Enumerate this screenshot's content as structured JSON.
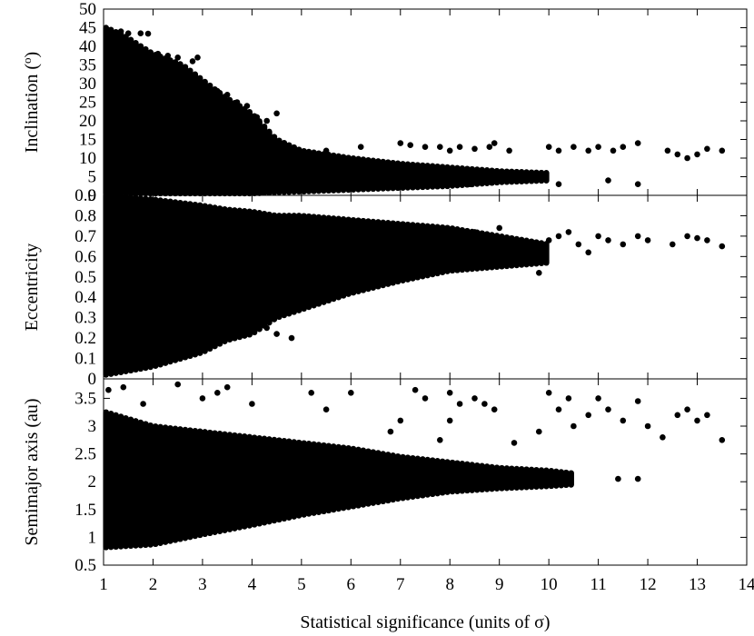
{
  "chart_data": {
    "type": "scatter",
    "marker_color": "#000000",
    "background_color": "#ffffff",
    "grid": false,
    "legend": "none",
    "x_shared": {
      "label": "Statistical significance (units of σ)",
      "range": [
        1,
        14
      ],
      "ticks": [
        1,
        2,
        3,
        4,
        5,
        6,
        7,
        8,
        9,
        10,
        11,
        12,
        13,
        14
      ],
      "tick_labels": [
        "1",
        "2",
        "3",
        "4",
        "5",
        "6",
        "7",
        "8",
        "9",
        "10",
        "11",
        "12",
        "13",
        "14"
      ]
    },
    "panels": [
      {
        "name": "inclination",
        "ylabel_main": "Inclination (",
        "ylabel_sup": "o",
        "ylabel_end": ")",
        "ylim": [
          0,
          50
        ],
        "yticks": [
          0,
          5,
          10,
          15,
          20,
          25,
          30,
          35,
          40,
          45,
          50
        ],
        "ytick_labels": [
          "0",
          "5",
          "10",
          "15",
          "20",
          "25",
          "30",
          "35",
          "40",
          "45",
          "50"
        ],
        "envelope": [
          {
            "x": 1.05,
            "lo": 0.5,
            "hi": 45
          },
          {
            "x": 1.4,
            "lo": 0.5,
            "hi": 43
          },
          {
            "x": 2.0,
            "lo": 0.5,
            "hi": 38
          },
          {
            "x": 2.6,
            "lo": 0.5,
            "hi": 35
          },
          {
            "x": 3.0,
            "lo": 0.5,
            "hi": 31
          },
          {
            "x": 3.5,
            "lo": 0.5,
            "hi": 26
          },
          {
            "x": 4.0,
            "lo": 0.5,
            "hi": 22
          },
          {
            "x": 4.5,
            "lo": 0.8,
            "hi": 15
          },
          {
            "x": 5.0,
            "lo": 1.0,
            "hi": 12
          },
          {
            "x": 6.0,
            "lo": 1.5,
            "hi": 10
          },
          {
            "x": 7.0,
            "lo": 2.0,
            "hi": 8.5
          },
          {
            "x": 8.0,
            "lo": 2.5,
            "hi": 7.5
          },
          {
            "x": 9.0,
            "lo": 3.5,
            "hi": 6.5
          },
          {
            "x": 10.0,
            "lo": 4.0,
            "hi": 6.0
          }
        ],
        "outliers": [
          [
            1.35,
            44
          ],
          [
            1.5,
            43.5
          ],
          [
            1.75,
            43.5
          ],
          [
            1.9,
            43.4
          ],
          [
            2.1,
            38
          ],
          [
            2.3,
            37.5
          ],
          [
            2.5,
            37
          ],
          [
            2.8,
            36
          ],
          [
            2.9,
            37
          ],
          [
            3.3,
            28
          ],
          [
            3.5,
            27
          ],
          [
            3.7,
            25
          ],
          [
            3.9,
            24
          ],
          [
            4.1,
            21
          ],
          [
            4.3,
            20
          ],
          [
            4.5,
            22
          ],
          [
            5.5,
            12
          ],
          [
            6.2,
            13
          ],
          [
            7.0,
            14
          ],
          [
            7.2,
            13.5
          ],
          [
            7.5,
            13
          ],
          [
            7.8,
            13
          ],
          [
            8.0,
            12
          ],
          [
            8.2,
            13
          ],
          [
            8.5,
            12.5
          ],
          [
            8.8,
            13
          ],
          [
            8.9,
            14
          ],
          [
            9.2,
            12
          ],
          [
            10.0,
            13
          ],
          [
            10.2,
            12
          ],
          [
            10.5,
            13
          ],
          [
            10.8,
            12
          ],
          [
            11.0,
            13
          ],
          [
            11.3,
            12
          ],
          [
            11.5,
            13
          ],
          [
            11.8,
            14
          ],
          [
            12.4,
            12
          ],
          [
            12.6,
            11
          ],
          [
            12.8,
            10
          ],
          [
            13.0,
            11
          ],
          [
            13.2,
            12.5
          ],
          [
            13.5,
            12
          ],
          [
            8.4,
            3
          ],
          [
            9.5,
            4
          ],
          [
            10.2,
            3
          ],
          [
            11.2,
            4
          ],
          [
            11.8,
            3
          ]
        ]
      },
      {
        "name": "eccentricity",
        "ylabel_main": "Eccentricity",
        "ylim": [
          0,
          0.9
        ],
        "yticks": [
          0,
          0.1,
          0.2,
          0.3,
          0.4,
          0.5,
          0.6,
          0.7,
          0.8,
          0.9
        ],
        "ytick_labels": [
          "0",
          "0.1",
          "0.2",
          "0.3",
          "0.4",
          "0.5",
          "0.6",
          "0.7",
          "0.8",
          "0.9"
        ],
        "envelope": [
          {
            "x": 1.05,
            "lo": 0.02,
            "hi": 0.9
          },
          {
            "x": 2.0,
            "lo": 0.06,
            "hi": 0.88
          },
          {
            "x": 3.0,
            "lo": 0.13,
            "hi": 0.85
          },
          {
            "x": 3.5,
            "lo": 0.19,
            "hi": 0.83
          },
          {
            "x": 4.0,
            "lo": 0.22,
            "hi": 0.82
          },
          {
            "x": 4.5,
            "lo": 0.3,
            "hi": 0.8
          },
          {
            "x": 5.0,
            "lo": 0.34,
            "hi": 0.8
          },
          {
            "x": 6.0,
            "lo": 0.42,
            "hi": 0.78
          },
          {
            "x": 7.0,
            "lo": 0.48,
            "hi": 0.76
          },
          {
            "x": 8.0,
            "lo": 0.53,
            "hi": 0.74
          },
          {
            "x": 9.0,
            "lo": 0.55,
            "hi": 0.7
          },
          {
            "x": 10.0,
            "lo": 0.57,
            "hi": 0.66
          }
        ],
        "outliers": [
          [
            4.5,
            0.22
          ],
          [
            4.3,
            0.25
          ],
          [
            4.8,
            0.2
          ],
          [
            8.5,
            0.72
          ],
          [
            9.0,
            0.74
          ],
          [
            9.5,
            0.65
          ],
          [
            9.8,
            0.52
          ],
          [
            10.0,
            0.68
          ],
          [
            10.2,
            0.7
          ],
          [
            10.4,
            0.72
          ],
          [
            10.6,
            0.66
          ],
          [
            10.8,
            0.62
          ],
          [
            11.0,
            0.7
          ],
          [
            11.2,
            0.68
          ],
          [
            11.5,
            0.66
          ],
          [
            11.8,
            0.7
          ],
          [
            12.0,
            0.68
          ],
          [
            12.5,
            0.66
          ],
          [
            12.8,
            0.7
          ],
          [
            13.0,
            0.69
          ],
          [
            13.2,
            0.68
          ],
          [
            13.5,
            0.65
          ]
        ]
      },
      {
        "name": "semimajor_axis",
        "ylabel_main": "Semimajor axis (au)",
        "ylim": [
          0.5,
          3.85
        ],
        "yticks": [
          0.5,
          1,
          1.5,
          2,
          2.5,
          3,
          3.5
        ],
        "ytick_labels": [
          "0.5",
          "1",
          "1.5",
          "2",
          "2.5",
          "3",
          "3.5"
        ],
        "envelope": [
          {
            "x": 1.05,
            "lo": 0.82,
            "hi": 3.25
          },
          {
            "x": 2.0,
            "lo": 0.87,
            "hi": 3.0
          },
          {
            "x": 3.0,
            "lo": 1.05,
            "hi": 2.9
          },
          {
            "x": 4.0,
            "lo": 1.22,
            "hi": 2.8
          },
          {
            "x": 5.0,
            "lo": 1.4,
            "hi": 2.7
          },
          {
            "x": 6.0,
            "lo": 1.55,
            "hi": 2.6
          },
          {
            "x": 7.0,
            "lo": 1.7,
            "hi": 2.45
          },
          {
            "x": 8.0,
            "lo": 1.82,
            "hi": 2.35
          },
          {
            "x": 9.0,
            "lo": 1.88,
            "hi": 2.25
          },
          {
            "x": 10.0,
            "lo": 1.92,
            "hi": 2.2
          },
          {
            "x": 10.5,
            "lo": 1.95,
            "hi": 2.15
          }
        ],
        "outliers": [
          [
            1.1,
            3.65
          ],
          [
            1.4,
            3.7
          ],
          [
            1.8,
            3.4
          ],
          [
            2.5,
            3.75
          ],
          [
            3.0,
            3.5
          ],
          [
            3.3,
            3.6
          ],
          [
            3.5,
            3.7
          ],
          [
            4.0,
            3.4
          ],
          [
            5.2,
            3.6
          ],
          [
            5.5,
            3.3
          ],
          [
            6.0,
            3.6
          ],
          [
            7.3,
            3.65
          ],
          [
            7.5,
            3.5
          ],
          [
            8.0,
            3.6
          ],
          [
            8.2,
            3.4
          ],
          [
            8.5,
            3.5
          ],
          [
            8.7,
            3.4
          ],
          [
            8.9,
            3.3
          ],
          [
            7.0,
            3.1
          ],
          [
            6.8,
            2.9
          ],
          [
            7.8,
            2.75
          ],
          [
            8.0,
            3.1
          ],
          [
            9.3,
            2.7
          ],
          [
            10.0,
            3.6
          ],
          [
            10.2,
            3.3
          ],
          [
            10.4,
            3.5
          ],
          [
            10.5,
            3.0
          ],
          [
            10.8,
            3.2
          ],
          [
            11.0,
            3.5
          ],
          [
            11.2,
            3.3
          ],
          [
            11.5,
            3.1
          ],
          [
            11.8,
            3.45
          ],
          [
            12.0,
            3.0
          ],
          [
            12.3,
            2.8
          ],
          [
            12.6,
            3.2
          ],
          [
            12.8,
            3.3
          ],
          [
            13.0,
            3.1
          ],
          [
            13.2,
            3.2
          ],
          [
            13.5,
            2.75
          ],
          [
            11.4,
            2.05
          ],
          [
            11.8,
            2.05
          ],
          [
            9.8,
            2.9
          ]
        ]
      }
    ]
  }
}
